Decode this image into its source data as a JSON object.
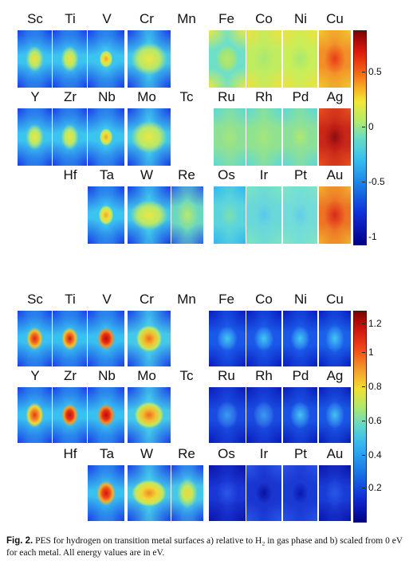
{
  "figure": {
    "panel_a": {
      "rows": [
        [
          "Sc",
          "Ti",
          "V",
          "Cr",
          "Mn",
          "Fe",
          "Co",
          "Ni",
          "Cu"
        ],
        [
          "Y",
          "Zr",
          "Nb",
          "Mo",
          "Tc",
          "Ru",
          "Rh",
          "Pd",
          "Ag"
        ],
        [
          "Hf",
          "Ta",
          "W",
          "Re",
          "Os",
          "Ir",
          "Pt",
          "Au"
        ]
      ],
      "colorbar_ticks": [
        "0.5",
        "0",
        "-0.5",
        "-1"
      ],
      "colorbar_range": [
        -1.0,
        0.85
      ]
    },
    "panel_b": {
      "rows": [
        [
          "Sc",
          "Ti",
          "V",
          "Cr",
          "Mn",
          "Fe",
          "Co",
          "Ni",
          "Cu"
        ],
        [
          "Y",
          "Zr",
          "Nb",
          "Mo",
          "Tc",
          "Ru",
          "Rh",
          "Pd",
          "Ag"
        ],
        [
          "Hf",
          "Ta",
          "W",
          "Re",
          "Os",
          "Ir",
          "Pt",
          "Au"
        ]
      ],
      "colorbar_ticks": [
        "1.2",
        "1",
        "0.8",
        "0.6",
        "0.4",
        "0.2"
      ],
      "colorbar_range": [
        0.0,
        1.3
      ]
    },
    "caption": {
      "label": "Fig. 2.",
      "text": "PES for hydrogen on transition metal surfaces a) relative to H₂ in gas phase and b) scaled from 0 eV for each metal. All energy values are in eV."
    }
  }
}
